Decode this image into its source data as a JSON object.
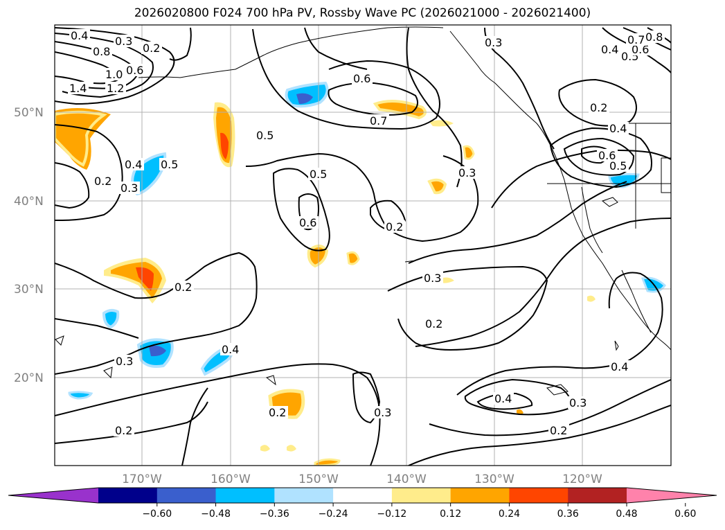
{
  "title": "2026020800 F024 700 hPa PV, Rossby Wave PC (2026021000 - 2026021400)",
  "map": {
    "lat_labels": [
      "50°N",
      "40°N",
      "30°N",
      "20°N"
    ],
    "lon_labels": [
      "170°W",
      "160°W",
      "150°W",
      "140°W",
      "130°W",
      "120°W"
    ],
    "contour_labels": [
      "0.4",
      "0.3",
      "0.2",
      "0.8",
      "0.6",
      "1.0",
      "1.2",
      "1.4",
      "0.2",
      "0.3",
      "0.4",
      "0.5",
      "0.5",
      "0.6",
      "0.7",
      "0.5",
      "0.6",
      "0.2",
      "0.3",
      "0.2",
      "0.3",
      "0.2",
      "0.4",
      "0.3",
      "0.2",
      "0.2",
      "0.3",
      "0.4",
      "0.3",
      "0.2",
      "0.4",
      "0.3",
      "0.2",
      "0.4",
      "0.5",
      "0.6",
      "0.4",
      "0.5",
      "0.6",
      "0.7",
      "0.8"
    ],
    "colors": {
      "land_outline": "#000000",
      "gridline": "#b0b0b0"
    }
  },
  "colorbar": {
    "ticks": [
      "−0.60",
      "−0.48",
      "−0.36",
      "−0.24",
      "−0.12",
      "0.12",
      "0.24",
      "0.36",
      "0.48",
      "0.60"
    ],
    "colors": [
      "#9932cc",
      "#00008b",
      "#3a5fcd",
      "#00bfff",
      "#b0e2ff",
      "#ffffff",
      "#ffec8b",
      "#ffa500",
      "#ff4500",
      "#b22222",
      "#ff82ab"
    ]
  }
}
